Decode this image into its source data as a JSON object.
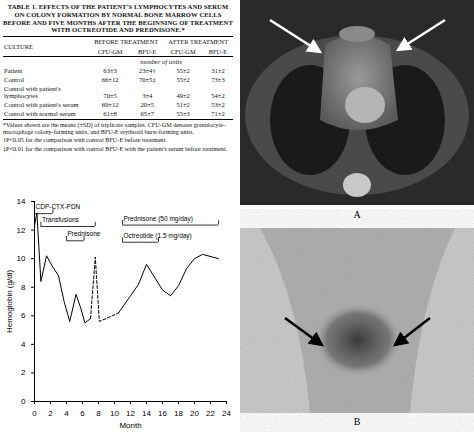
{
  "table": {
    "title": "TABLE 1. EFFECTS OF THE PATIENT'S LYMPHOCYTES AND SERUM ON COLONY FORMATION BY NORMAL BONE MARROW CELLS BEFORE AND FIVE MONTHS AFTER THE BEGINNING OF TREATMENT WITH OCTREOTIDE AND PREDNISONE.*",
    "columns": [
      "CULTURE",
      "BEFORE TREATMENT",
      "AFTER TREATMENT"
    ],
    "subcolumns": [
      "CFU-GM",
      "BFU-E",
      "CFU-GM",
      "BFU-E"
    ],
    "unit": "number of units",
    "rows": [
      [
        "Patient",
        "63±3",
        "23±4†",
        "55±2",
        "31±2"
      ],
      [
        "Control",
        "66±12",
        "70±5‡",
        "55±2",
        "73±3"
      ],
      [
        "Control with patient's lymphocytes",
        "70±5",
        "3±4",
        "49±2",
        "54±2"
      ],
      [
        "Control with patient's serum",
        "69±12",
        "20±5",
        "51±2",
        "53±2"
      ],
      [
        "Control with normal serum",
        "61±8",
        "65±7",
        "55±3",
        "71±2"
      ]
    ],
    "footnotes": [
      "*Values shown are the means (±SD) of triplicate samples. CFU-GM denotes granulocyte–macrophage colony-forming units, and BFU-E erythroid burst-forming units.",
      "†P<0.05 for the comparison with control BFU-E before treatment.",
      "‡P<0.01 for the comparison with control BFU-E with the patient's serum before treatment."
    ]
  },
  "chart_data": {
    "type": "line",
    "xlabel": "Month",
    "ylabel": "Hemoglobin (g/dl)",
    "x": [
      0,
      0.3,
      0.8,
      1.5,
      2.2,
      3,
      3.7,
      4.4,
      5.2,
      5.8,
      6.3,
      7,
      7.6,
      8.1,
      10.5,
      12,
      13,
      14,
      15,
      16,
      17,
      18,
      19,
      20,
      21,
      23
    ],
    "series": [
      {
        "line_style": "solid",
        "color": "#000000",
        "values": [
          12.3,
          13.2,
          8.4,
          10.2,
          9.5,
          8.8,
          7.0,
          5.6,
          7.5,
          6.5,
          5.5,
          5.8,
          null,
          null,
          6.2,
          7.4,
          8.2,
          9.6,
          8.7,
          7.8,
          7.4,
          8.1,
          9.3,
          10.0,
          10.3,
          10.0
        ]
      },
      {
        "line_style": "dashed",
        "color": "#000000",
        "values": [
          null,
          null,
          null,
          null,
          null,
          null,
          null,
          null,
          null,
          null,
          null,
          5.8,
          10.1,
          5.6,
          6.2,
          null,
          null,
          null,
          null,
          null,
          null,
          null,
          null,
          null,
          null,
          null
        ]
      }
    ],
    "xlim": [
      0,
      24
    ],
    "xticks": [
      0,
      2,
      4,
      6,
      8,
      10,
      12,
      14,
      16,
      18,
      20,
      22,
      24
    ],
    "ylim": [
      0,
      14
    ],
    "yticks": [
      0,
      2,
      4,
      6,
      8,
      10,
      12,
      14
    ],
    "annotations": [
      {
        "text": "CDP-CTX-PDN",
        "start": 0,
        "end": 2.3
      },
      {
        "text": "Transfusions",
        "start": 0.8,
        "end": 7.6
      },
      {
        "text": "Prednisone",
        "start": 4,
        "end": 6.2
      },
      {
        "text": "Prednisone (50 mg/day)",
        "start": 11,
        "end": 23
      },
      {
        "text": "Octreotide (1.5 mg/day)",
        "start": 11,
        "end": 15.5
      }
    ]
  },
  "panels": [
    {
      "label": "A"
    },
    {
      "label": "B"
    }
  ]
}
